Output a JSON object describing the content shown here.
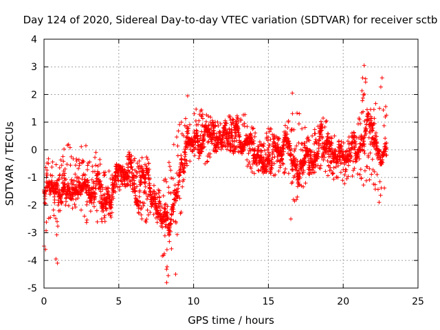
{
  "chart_data": {
    "type": "scatter",
    "title": "Day 124 of 2020, Sidereal Day-to-day VTEC variation (SDTVAR) for receiver sctb",
    "xlabel": "GPS time / hours",
    "ylabel": "SDTVAR / TECUs",
    "xlim": [
      0,
      25
    ],
    "ylim": [
      -5,
      4
    ],
    "x_ticks": [
      "0",
      "5",
      "10",
      "15",
      "20",
      "25"
    ],
    "y_ticks": [
      "-5",
      "-4",
      "-3",
      "-2",
      "-1",
      "0",
      "1",
      "2",
      "3",
      "4"
    ],
    "grid": true,
    "marker": "+",
    "marker_color": "#ff0000",
    "series_name": "SDTVAR",
    "envelope": {
      "x": [
        0.0,
        0.3,
        0.6,
        1.0,
        1.3,
        1.6,
        2.0,
        2.4,
        2.8,
        3.2,
        3.6,
        4.0,
        4.4,
        4.8,
        5.2,
        5.6,
        6.0,
        6.4,
        6.8,
        7.2,
        7.6,
        8.0,
        8.3,
        8.6,
        9.0,
        9.4,
        9.8,
        10.2,
        10.6,
        11.0,
        11.4,
        11.8,
        12.2,
        12.6,
        13.0,
        13.4,
        13.8,
        14.2,
        14.6,
        15.0,
        15.4,
        15.8,
        16.2,
        16.6,
        17.0,
        17.4,
        17.8,
        18.2,
        18.6,
        19.0,
        19.4,
        19.8,
        20.2,
        20.6,
        21.0,
        21.4,
        21.8,
        22.2,
        22.6,
        22.9
      ],
      "low": [
        -3.5,
        -3.0,
        -2.6,
        -3.5,
        -2.3,
        -2.0,
        -2.2,
        -2.3,
        -2.8,
        -2.6,
        -2.9,
        -2.6,
        -2.8,
        -1.6,
        -1.4,
        -1.3,
        -1.6,
        -2.5,
        -3.0,
        -2.4,
        -2.7,
        -4.4,
        -4.8,
        -3.6,
        -3.3,
        -0.8,
        -0.4,
        -0.5,
        -0.6,
        -0.4,
        -0.2,
        0.0,
        0.0,
        -0.2,
        -0.1,
        -0.3,
        -1.0,
        -1.2,
        -0.9,
        -0.8,
        -1.0,
        -0.8,
        -1.0,
        -2.5,
        -1.6,
        -1.3,
        -0.9,
        -0.8,
        -0.7,
        -1.0,
        -1.2,
        -0.9,
        -1.7,
        -1.0,
        -1.1,
        -1.4,
        -1.2,
        -1.5,
        -2.0,
        -1.5
      ],
      "high": [
        -0.8,
        -0.3,
        -0.4,
        -0.6,
        0.0,
        0.3,
        -0.2,
        0.3,
        0.2,
        -0.1,
        0.0,
        -0.6,
        -0.8,
        -0.5,
        -0.6,
        0.0,
        -0.3,
        -0.1,
        0.4,
        -1.2,
        -1.4,
        -1.0,
        -0.5,
        0.0,
        1.8,
        1.2,
        1.0,
        1.6,
        1.4,
        1.3,
        1.0,
        1.2,
        1.3,
        1.2,
        1.4,
        1.3,
        1.1,
        0.6,
        0.2,
        0.9,
        0.6,
        0.4,
        1.1,
        2.0,
        1.4,
        1.0,
        0.8,
        0.8,
        1.2,
        1.0,
        0.6,
        0.4,
        0.3,
        0.8,
        1.0,
        2.9,
        1.5,
        1.8,
        2.5,
        1.4
      ]
    },
    "notable_points": [
      {
        "x": 21.4,
        "y": 3.05
      },
      {
        "x": 21.3,
        "y": 2.6
      },
      {
        "x": 21.5,
        "y": 2.45
      },
      {
        "x": 22.6,
        "y": 2.6
      },
      {
        "x": 16.6,
        "y": 2.05
      },
      {
        "x": 9.6,
        "y": 1.95
      },
      {
        "x": 8.2,
        "y": -4.8
      },
      {
        "x": 8.8,
        "y": -4.5
      },
      {
        "x": 0.9,
        "y": -4.1
      },
      {
        "x": 0.8,
        "y": -3.95
      },
      {
        "x": 0.1,
        "y": -3.6
      },
      {
        "x": 16.5,
        "y": -2.5
      },
      {
        "x": 22.4,
        "y": -1.9
      }
    ]
  }
}
